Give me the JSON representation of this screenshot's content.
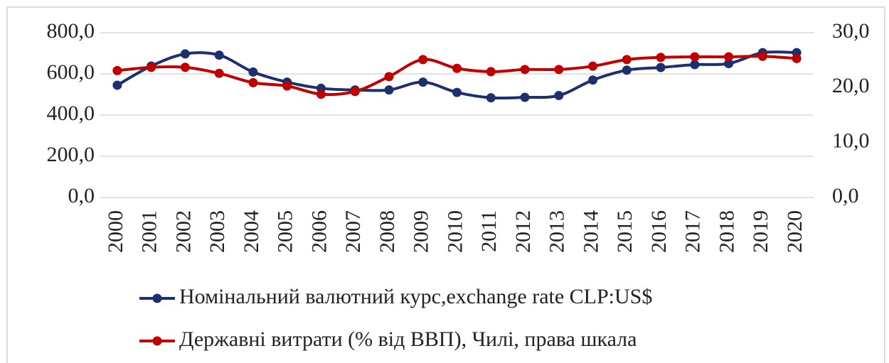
{
  "chart_data": {
    "type": "line",
    "categories": [
      "2000",
      "2001",
      "2002",
      "2003",
      "2004",
      "2005",
      "2006",
      "2007",
      "2008",
      "2009",
      "2010",
      "2011",
      "2012",
      "2013",
      "2014",
      "2015",
      "2016",
      "2017",
      "2018",
      "2019",
      "2020"
    ],
    "series": [
      {
        "name": "Номінальний валютний курс,exchange rate CLP:US$",
        "color": "#1c2f6e",
        "axis": "y",
        "values": [
          545,
          638,
          697,
          691,
          609,
          560,
          530,
          522,
          522,
          560,
          510,
          484,
          486,
          495,
          570,
          618,
          631,
          645,
          650,
          703,
          703
        ]
      },
      {
        "name": "Державні витрати (% від ВВП), Чилі, права шкала",
        "color": "#c00000",
        "axis": "y2",
        "values": [
          23.1,
          23.7,
          23.7,
          22.6,
          20.9,
          20.3,
          18.8,
          19.3,
          22.0,
          25.1,
          23.5,
          22.9,
          23.3,
          23.3,
          23.9,
          25.1,
          25.5,
          25.6,
          25.6,
          25.7,
          25.3
        ]
      }
    ],
    "ylim": [
      0,
      800
    ],
    "yticks": [
      {
        "value": 0,
        "label": "0,0"
      },
      {
        "value": 200,
        "label": "200,0"
      },
      {
        "value": 400,
        "label": "400,0"
      },
      {
        "value": 600,
        "label": "600,0"
      },
      {
        "value": 800,
        "label": "800,0"
      }
    ],
    "y2lim": [
      0,
      30
    ],
    "y2ticks": [
      {
        "value": 0,
        "label": "0,0"
      },
      {
        "value": 10,
        "label": "10,0"
      },
      {
        "value": 20,
        "label": "20,0"
      },
      {
        "value": 30,
        "label": "30,0"
      }
    ],
    "grid": true
  }
}
